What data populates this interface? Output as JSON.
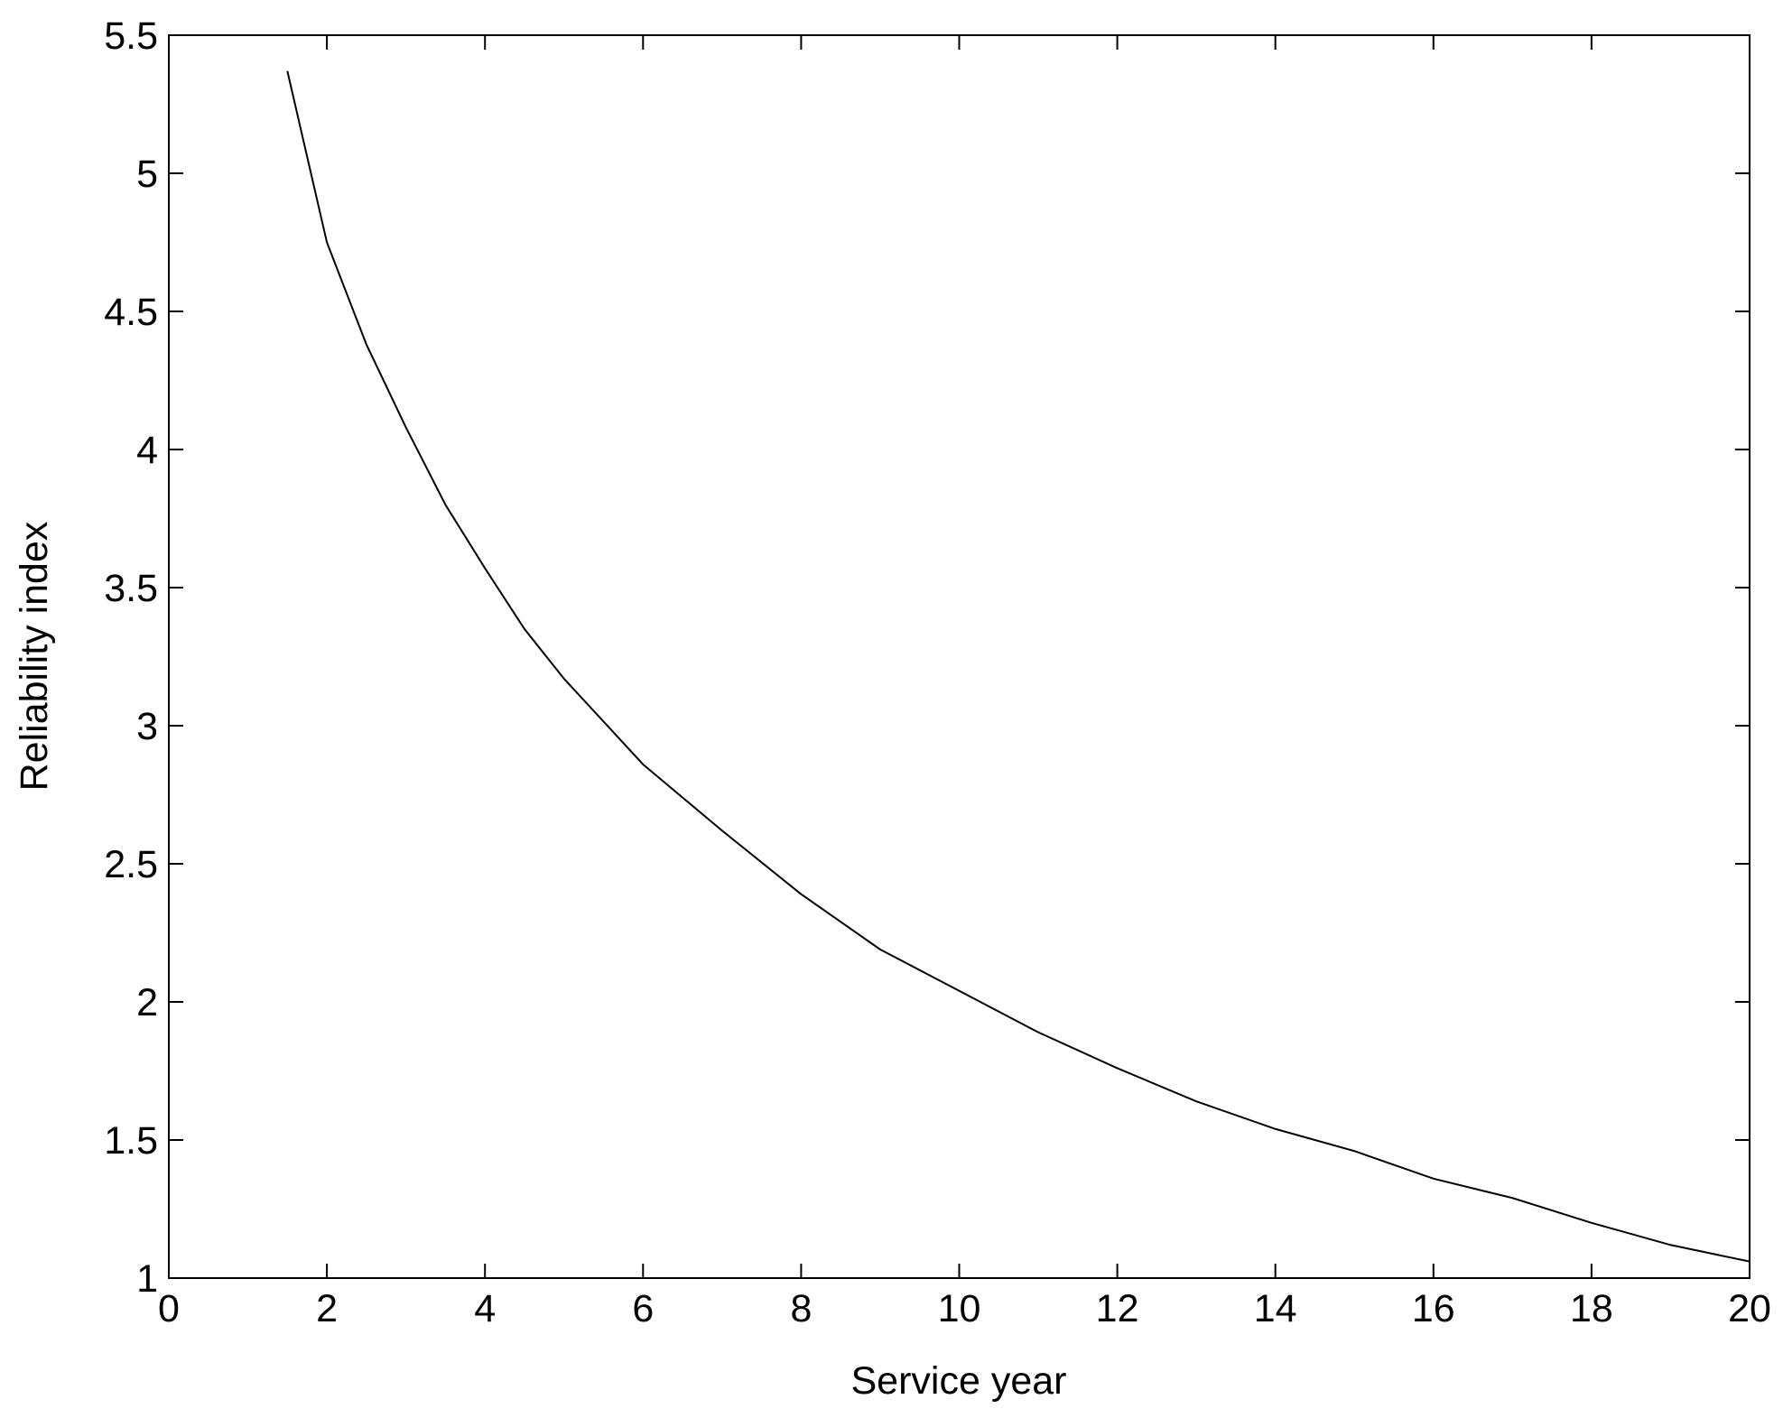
{
  "chart_data": {
    "type": "line",
    "x_label": "Service year",
    "y_label": "Reliability index",
    "x": [
      1.5,
      2,
      2.5,
      3,
      3.5,
      4,
      4.5,
      5,
      6,
      7,
      8,
      9,
      10,
      11,
      12,
      13,
      14,
      15,
      16,
      17,
      18,
      19,
      20
    ],
    "series": [
      {
        "color": "#000000",
        "values": [
          5.37,
          4.75,
          4.38,
          4.08,
          3.8,
          3.57,
          3.35,
          3.17,
          2.86,
          2.62,
          2.39,
          2.19,
          2.04,
          1.89,
          1.76,
          1.64,
          1.54,
          1.46,
          1.36,
          1.29,
          1.2,
          1.12,
          1.06
        ]
      }
    ],
    "xlim": [
      0,
      20
    ],
    "xticks": [
      0,
      2,
      4,
      6,
      8,
      10,
      12,
      14,
      16,
      18,
      20
    ],
    "ylim": [
      1,
      5.5
    ],
    "yticks": [
      1,
      1.5,
      2,
      2.5,
      3,
      3.5,
      4,
      4.5,
      5,
      5.5
    ],
    "grid": false
  }
}
